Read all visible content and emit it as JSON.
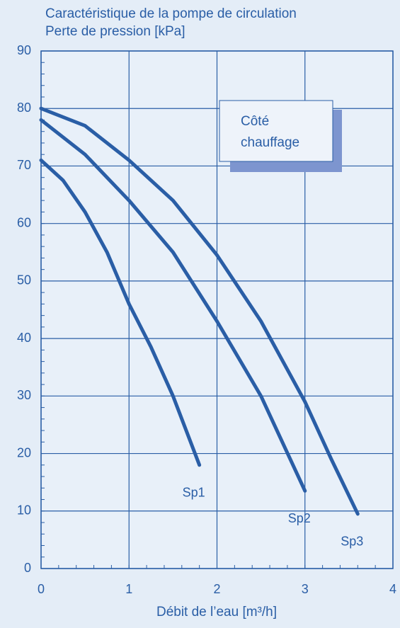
{
  "chart_data": {
    "type": "line",
    "title": "Caractéristique de la pompe de circulation",
    "y_label": "Perte de pression [kPa]",
    "x_label": "Débit de l’eau [m³/h]",
    "annotation": [
      "Côté",
      "chauffage"
    ],
    "xlim": [
      0,
      4
    ],
    "xticks": [
      0,
      1,
      2,
      3,
      4
    ],
    "ylim": [
      0,
      90
    ],
    "yticks": [
      0,
      10,
      20,
      30,
      40,
      50,
      60,
      70,
      80,
      90
    ],
    "grid": true,
    "series": [
      {
        "name": "Sp1",
        "color": "#2a5ea6",
        "x": [
          0,
          0.25,
          0.5,
          0.75,
          1,
          1.25,
          1.5,
          1.8
        ],
        "values": [
          71,
          67.5,
          62,
          55,
          46,
          38.5,
          30,
          18
        ]
      },
      {
        "name": "Sp2",
        "color": "#2a5ea6",
        "x": [
          0,
          0.5,
          1,
          1.5,
          2,
          2.5,
          3
        ],
        "values": [
          78,
          72,
          64,
          55,
          43,
          30,
          13.5
        ]
      },
      {
        "name": "Sp3",
        "color": "#2a5ea6",
        "x": [
          0,
          0.5,
          1,
          1.5,
          2,
          2.5,
          3,
          3.3,
          3.6
        ],
        "values": [
          80,
          77,
          71,
          64,
          54.5,
          43,
          29,
          19,
          9.5
        ]
      }
    ]
  }
}
